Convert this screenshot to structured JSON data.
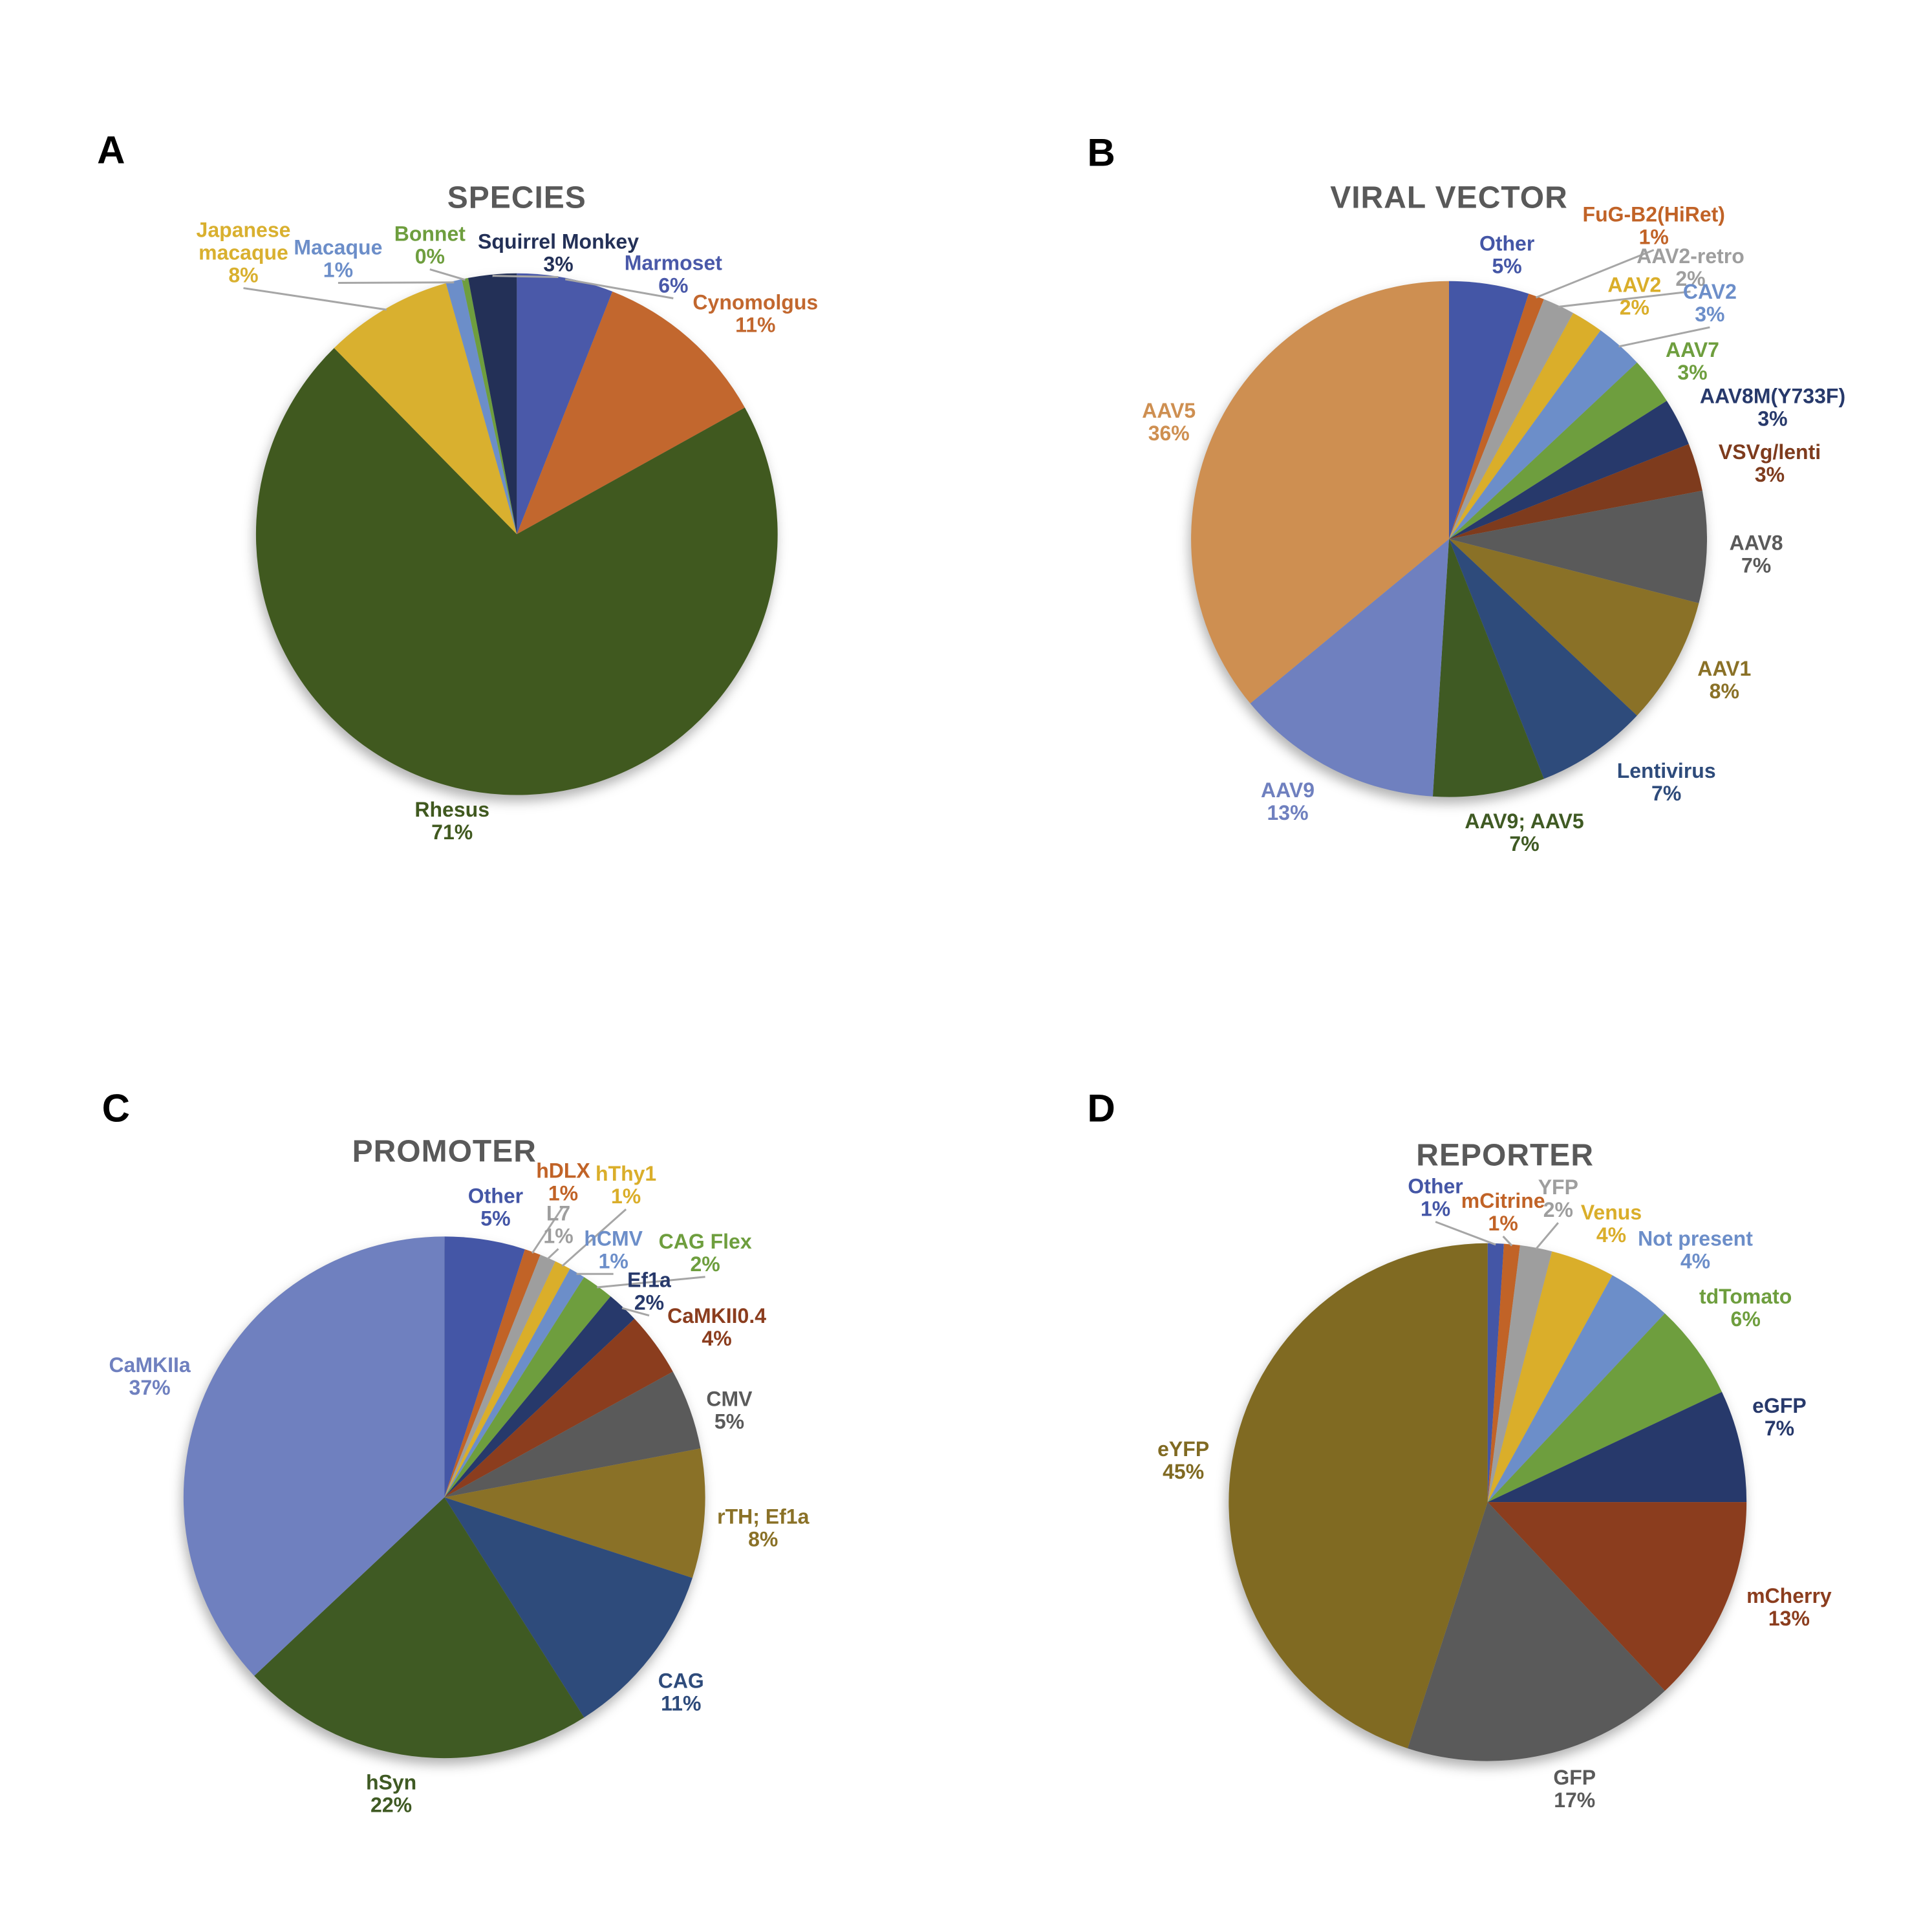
{
  "page": {
    "background": "#FFFFFF"
  },
  "chart_data": [
    {
      "type": "pie",
      "panel_letter": "A",
      "title": "SPECIES",
      "title_color": "#595959",
      "direction": "clockwise",
      "start_angle_deg": 0,
      "legend_position": "none",
      "layout": {
        "letter": {
          "x": 0.115,
          "y": 0.155
        },
        "title": {
          "x": 0.535,
          "y": 0.205
        },
        "cx": 0.535,
        "cy": 0.553,
        "r": 0.27
      },
      "slices": [
        {
          "category": "Marmoset",
          "value": 6,
          "pct_label": "6%",
          "color": "#4A59A9",
          "label": {
            "x": 0.697,
            "y": 0.272,
            "leader": true
          }
        },
        {
          "category": "Cynomolgus",
          "value": 11,
          "pct_label": "11%",
          "color": "#C2672E",
          "label": {
            "x": 0.782,
            "y": 0.313,
            "leader": false
          }
        },
        {
          "category": "Rhesus",
          "value": 71,
          "pct_label": "71%",
          "color": "#40591F",
          "label": {
            "x": 0.468,
            "y": 0.838,
            "leader": false
          }
        },
        {
          "category": "Japanese macaque",
          "display": "Japanese\nmacaque",
          "value": 8,
          "pct_label": "8%",
          "color": "#D9B02F",
          "label": {
            "x": 0.252,
            "y": 0.238,
            "leader": true
          }
        },
        {
          "category": "Macaque",
          "value": 1,
          "pct_label": "1%",
          "color": "#6C8EC9",
          "label": {
            "x": 0.35,
            "y": 0.256,
            "leader": true
          }
        },
        {
          "category": "Bonnet",
          "value": 0.4,
          "pct_label": "0%",
          "color": "#6E9E3E",
          "label": {
            "x": 0.445,
            "y": 0.242,
            "leader": true
          }
        },
        {
          "category": "Squirrel Monkey",
          "value": 3,
          "pct_label": "3%",
          "color": "#233057",
          "label": {
            "x": 0.578,
            "y": 0.25,
            "leader": true
          }
        }
      ]
    },
    {
      "type": "pie",
      "panel_letter": "B",
      "title": "VIRAL VECTOR",
      "title_color": "#595959",
      "direction": "clockwise",
      "start_angle_deg": 0,
      "legend_position": "none",
      "layout": {
        "letter": {
          "x": 0.14,
          "y": 0.158
        },
        "title": {
          "x": 0.5,
          "y": 0.205
        },
        "cx": 0.5,
        "cy": 0.558,
        "r": 0.267
      },
      "slices": [
        {
          "category": "Other",
          "value": 5,
          "pct_label": "5%",
          "color": "#4456A6",
          "label": {
            "x": 0.56,
            "y": 0.252,
            "leader": false
          }
        },
        {
          "category": "FuG-B2(HiRet)",
          "value": 1,
          "pct_label": "1%",
          "color": "#C16327",
          "label": {
            "x": 0.712,
            "y": 0.222,
            "leader": true
          }
        },
        {
          "category": "AAV2-retro",
          "value": 2,
          "pct_label": "2%",
          "color": "#9E9E9E",
          "label": {
            "x": 0.75,
            "y": 0.265,
            "leader": true
          }
        },
        {
          "category": "AAV2",
          "value": 2,
          "pct_label": "2%",
          "color": "#DAAE2A",
          "label": {
            "x": 0.692,
            "y": 0.295,
            "leader": false
          }
        },
        {
          "category": "CAV2",
          "value": 3,
          "pct_label": "3%",
          "color": "#6C8EC9",
          "label": {
            "x": 0.77,
            "y": 0.302,
            "leader": true
          }
        },
        {
          "category": "AAV7",
          "value": 3,
          "pct_label": "3%",
          "color": "#6E9E3E",
          "label": {
            "x": 0.752,
            "y": 0.362,
            "leader": false
          }
        },
        {
          "category": "AAV8M(Y733F)",
          "value": 3,
          "pct_label": "3%",
          "color": "#27396B",
          "label": {
            "x": 0.835,
            "y": 0.41,
            "leader": false
          }
        },
        {
          "category": "VSVg/lenti",
          "value": 3,
          "pct_label": "3%",
          "color": "#7E3B1D",
          "label": {
            "x": 0.832,
            "y": 0.468,
            "leader": false
          }
        },
        {
          "category": "AAV8",
          "value": 7,
          "pct_label": "7%",
          "color": "#5A5A5A",
          "label": {
            "x": 0.818,
            "y": 0.562,
            "leader": false
          }
        },
        {
          "category": "AAV1",
          "value": 8,
          "pct_label": "8%",
          "color": "#8A7127",
          "label": {
            "x": 0.785,
            "y": 0.692,
            "leader": false
          }
        },
        {
          "category": "Lentivirus",
          "value": 7,
          "pct_label": "7%",
          "color": "#2E4B7B",
          "label": {
            "x": 0.725,
            "y": 0.798,
            "leader": false
          }
        },
        {
          "category": "AAV9; AAV5",
          "value": 7,
          "pct_label": "7%",
          "color": "#3F5A23",
          "label": {
            "x": 0.578,
            "y": 0.85,
            "leader": false
          }
        },
        {
          "category": "AAV9",
          "value": 13,
          "pct_label": "13%",
          "color": "#6F80BF",
          "label": {
            "x": 0.333,
            "y": 0.818,
            "leader": false
          }
        },
        {
          "category": "AAV5",
          "value": 36,
          "pct_label": "36%",
          "color": "#CE8F51",
          "label": {
            "x": 0.21,
            "y": 0.425,
            "leader": false
          }
        }
      ]
    },
    {
      "type": "pie",
      "panel_letter": "C",
      "title": "PROMOTER",
      "title_color": "#595959",
      "direction": "clockwise",
      "start_angle_deg": 0,
      "legend_position": "none",
      "layout": {
        "letter": {
          "x": 0.12,
          "y": 0.147
        },
        "title": {
          "x": 0.46,
          "y": 0.192
        },
        "cx": 0.46,
        "cy": 0.55,
        "r": 0.27
      },
      "slices": [
        {
          "category": "Other",
          "value": 5,
          "pct_label": "5%",
          "color": "#4456A6",
          "label": {
            "x": 0.513,
            "y": 0.238,
            "leader": false
          }
        },
        {
          "category": "hDLX",
          "value": 1,
          "pct_label": "1%",
          "color": "#C16327",
          "label": {
            "x": 0.583,
            "y": 0.212,
            "leader": true
          }
        },
        {
          "category": "L7",
          "value": 1,
          "pct_label": "1%",
          "color": "#9E9E9E",
          "label": {
            "x": 0.578,
            "y": 0.256,
            "leader": true
          }
        },
        {
          "category": "hThy1",
          "value": 1,
          "pct_label": "1%",
          "color": "#DAAE2A",
          "label": {
            "x": 0.648,
            "y": 0.215,
            "leader": true
          }
        },
        {
          "category": "hCMV",
          "value": 1,
          "pct_label": "1%",
          "color": "#6C8EC9",
          "label": {
            "x": 0.635,
            "y": 0.282,
            "leader": true
          }
        },
        {
          "category": "CAG Flex",
          "value": 2,
          "pct_label": "2%",
          "color": "#6E9E3E",
          "label": {
            "x": 0.73,
            "y": 0.285,
            "leader": true
          }
        },
        {
          "category": "Ef1a",
          "value": 2,
          "pct_label": "2%",
          "color": "#27396B",
          "label": {
            "x": 0.672,
            "y": 0.325,
            "leader": true
          }
        },
        {
          "category": "CaMKII0.4",
          "value": 4,
          "pct_label": "4%",
          "color": "#8B3D1E",
          "label": {
            "x": 0.742,
            "y": 0.362,
            "leader": false
          }
        },
        {
          "category": "CMV",
          "value": 5,
          "pct_label": "5%",
          "color": "#5A5A5A",
          "label": {
            "x": 0.755,
            "y": 0.448,
            "leader": false
          }
        },
        {
          "category": "rTH; Ef1a",
          "value": 8,
          "pct_label": "8%",
          "color": "#8A7127",
          "label": {
            "x": 0.79,
            "y": 0.57,
            "leader": false
          }
        },
        {
          "category": "CAG",
          "value": 11,
          "pct_label": "11%",
          "color": "#2E4B7B",
          "label": {
            "x": 0.705,
            "y": 0.74,
            "leader": false
          }
        },
        {
          "category": "hSyn",
          "value": 22,
          "pct_label": "22%",
          "color": "#3F5A23",
          "label": {
            "x": 0.405,
            "y": 0.845,
            "leader": false
          }
        },
        {
          "category": "CaMKIIa",
          "value": 37,
          "pct_label": "37%",
          "color": "#6F80BF",
          "label": {
            "x": 0.155,
            "y": 0.413,
            "leader": false
          }
        }
      ]
    },
    {
      "type": "pie",
      "panel_letter": "D",
      "title": "REPORTER",
      "title_color": "#595959",
      "direction": "clockwise",
      "start_angle_deg": 0,
      "legend_position": "none",
      "layout": {
        "letter": {
          "x": 0.14,
          "y": 0.147
        },
        "title": {
          "x": 0.558,
          "y": 0.196
        },
        "cx": 0.54,
        "cy": 0.555,
        "r": 0.268
      },
      "slices": [
        {
          "category": "Other",
          "value": 1,
          "pct_label": "1%",
          "color": "#4456A6",
          "label": {
            "x": 0.486,
            "y": 0.228,
            "leader": true
          }
        },
        {
          "category": "mCitrine",
          "value": 1,
          "pct_label": "1%",
          "color": "#C16327",
          "label": {
            "x": 0.556,
            "y": 0.243,
            "leader": true
          }
        },
        {
          "category": "YFP",
          "value": 2,
          "pct_label": "2%",
          "color": "#9E9E9E",
          "label": {
            "x": 0.613,
            "y": 0.229,
            "leader": true
          }
        },
        {
          "category": "Venus",
          "value": 4,
          "pct_label": "4%",
          "color": "#DAAE2A",
          "label": {
            "x": 0.668,
            "y": 0.255,
            "leader": false
          }
        },
        {
          "category": "Not present",
          "value": 4,
          "pct_label": "4%",
          "color": "#6C8EC9",
          "label": {
            "x": 0.755,
            "y": 0.282,
            "leader": false
          }
        },
        {
          "category": "tdTomato",
          "value": 6,
          "pct_label": "6%",
          "color": "#6E9E3E",
          "label": {
            "x": 0.807,
            "y": 0.342,
            "leader": false
          }
        },
        {
          "category": "eGFP",
          "value": 7,
          "pct_label": "7%",
          "color": "#27396B",
          "label": {
            "x": 0.842,
            "y": 0.455,
            "leader": false
          }
        },
        {
          "category": "mCherry",
          "value": 13,
          "pct_label": "13%",
          "color": "#8B3D1E",
          "label": {
            "x": 0.852,
            "y": 0.652,
            "leader": false
          }
        },
        {
          "category": "GFP",
          "value": 17,
          "pct_label": "17%",
          "color": "#5A5A5A",
          "label": {
            "x": 0.63,
            "y": 0.84,
            "leader": false
          }
        },
        {
          "category": "eYFP",
          "value": 45,
          "pct_label": "45%",
          "color": "#806A22",
          "label": {
            "x": 0.225,
            "y": 0.5,
            "leader": false
          }
        }
      ]
    }
  ]
}
